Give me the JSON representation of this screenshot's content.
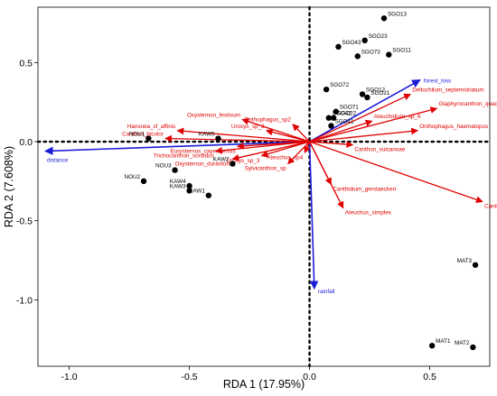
{
  "chart_data": {
    "type": "scatter",
    "subtype": "rda-triplot",
    "xlabel": "RDA 1 (17.95%)",
    "ylabel": "RDA 2 (7.608%)",
    "xlim": [
      -1.13,
      0.75
    ],
    "ylim": [
      -1.42,
      0.85
    ],
    "x_ticks": [
      -1.0,
      -0.5,
      0.0,
      0.5
    ],
    "x_tick_labels": [
      "-1.0",
      "-0.5",
      "0.0",
      "0.5"
    ],
    "y_ticks": [
      -1.0,
      -0.5,
      0.0,
      0.5
    ],
    "y_tick_labels": [
      "-1.0",
      "-0.5",
      "0.0",
      "0.5"
    ],
    "grid": false,
    "reference_lines": {
      "x": 0,
      "y": 0,
      "style": "dotted"
    },
    "colors": {
      "sites": "#000000",
      "species": "#e00000",
      "environment": "#1c1cd8"
    },
    "sites": [
      {
        "name": "SGO13",
        "x": 0.31,
        "y": 0.78
      },
      {
        "name": "SGO43",
        "x": 0.12,
        "y": 0.6
      },
      {
        "name": "SGO23",
        "x": 0.23,
        "y": 0.64
      },
      {
        "name": "SGO11",
        "x": 0.33,
        "y": 0.55
      },
      {
        "name": "SGO73",
        "x": 0.2,
        "y": 0.54
      },
      {
        "name": "SGO72",
        "x": 0.07,
        "y": 0.33
      },
      {
        "name": "SGO12",
        "x": 0.22,
        "y": 0.3
      },
      {
        "name": "SGO21",
        "x": 0.24,
        "y": 0.28
      },
      {
        "name": "SGO71",
        "x": 0.11,
        "y": 0.19
      },
      {
        "name": "SGO42",
        "x": 0.08,
        "y": 0.15
      },
      {
        "name": "SGO22",
        "x": 0.1,
        "y": 0.15
      },
      {
        "name": "SGO41",
        "x": 0.09,
        "y": 0.1
      },
      {
        "name": "NOU1",
        "x": -0.67,
        "y": 0.02
      },
      {
        "name": "KAW5",
        "x": -0.38,
        "y": 0.02
      },
      {
        "name": "NOU3",
        "x": -0.56,
        "y": -0.18
      },
      {
        "name": "KAW2",
        "x": -0.32,
        "y": -0.14
      },
      {
        "name": "NOU2",
        "x": -0.69,
        "y": -0.25
      },
      {
        "name": "KAW4",
        "x": -0.5,
        "y": -0.28
      },
      {
        "name": "KAW3",
        "x": -0.5,
        "y": -0.31
      },
      {
        "name": "KAW1",
        "x": -0.42,
        "y": -0.34
      },
      {
        "name": "MAT3",
        "x": 0.69,
        "y": -0.78
      },
      {
        "name": "MAT1",
        "x": 0.51,
        "y": -1.29
      },
      {
        "name": "MAT2",
        "x": 0.68,
        "y": -1.3
      }
    ],
    "species": [
      {
        "name": "Deltochilum_septemstriatum",
        "x": 0.42,
        "y": 0.3
      },
      {
        "name": "Glaphyrocanthon_quadriguttatus",
        "x": 0.53,
        "y": 0.21
      },
      {
        "name": "Ateuchidium_sp_6",
        "x": 0.26,
        "y": 0.13
      },
      {
        "name": "Onthophagus_haematopus",
        "x": 0.45,
        "y": 0.07
      },
      {
        "name": "Oxysternon_festivum",
        "x": -0.28,
        "y": 0.14
      },
      {
        "name": "Onthophagus_sp2",
        "x": -0.07,
        "y": 0.11
      },
      {
        "name": "Uroxys_sp_2",
        "x": -0.18,
        "y": 0.07
      },
      {
        "name": "Hansreia_cf_affinis",
        "x": -0.55,
        "y": 0.07
      },
      {
        "name": "Canthon_bicolor",
        "x": -0.6,
        "y": 0.02
      },
      {
        "name": "Eurysternus_cayennensis",
        "x": -0.3,
        "y": -0.03
      },
      {
        "name": "Trichocanthon_sordidus",
        "x": -0.39,
        "y": -0.06
      },
      {
        "name": "Oxysternon_durantoni",
        "x": -0.32,
        "y": -0.11
      },
      {
        "name": "Uroxys_sp_3",
        "x": -0.2,
        "y": -0.09
      },
      {
        "name": "Sylvicanthon_sp",
        "x": -0.09,
        "y": -0.14
      },
      {
        "name": "Ateuchus_sp4",
        "x": -0.02,
        "y": -0.07
      },
      {
        "name": "Canthon_vulcanoae",
        "x": 0.18,
        "y": -0.02
      },
      {
        "name": "Canthidium_gerstaeckeri",
        "x": 0.09,
        "y": -0.27
      },
      {
        "name": "Ateuchus_simplex",
        "x": 0.14,
        "y": -0.42
      },
      {
        "name": "Canthon_triangularis",
        "x": 0.72,
        "y": -0.38
      }
    ],
    "environment": [
      {
        "name": "forest_loss",
        "x": 0.46,
        "y": 0.39
      },
      {
        "name": "distance",
        "x": -1.1,
        "y": -0.06
      },
      {
        "name": "rainfall",
        "x": 0.02,
        "y": -0.93
      }
    ]
  }
}
